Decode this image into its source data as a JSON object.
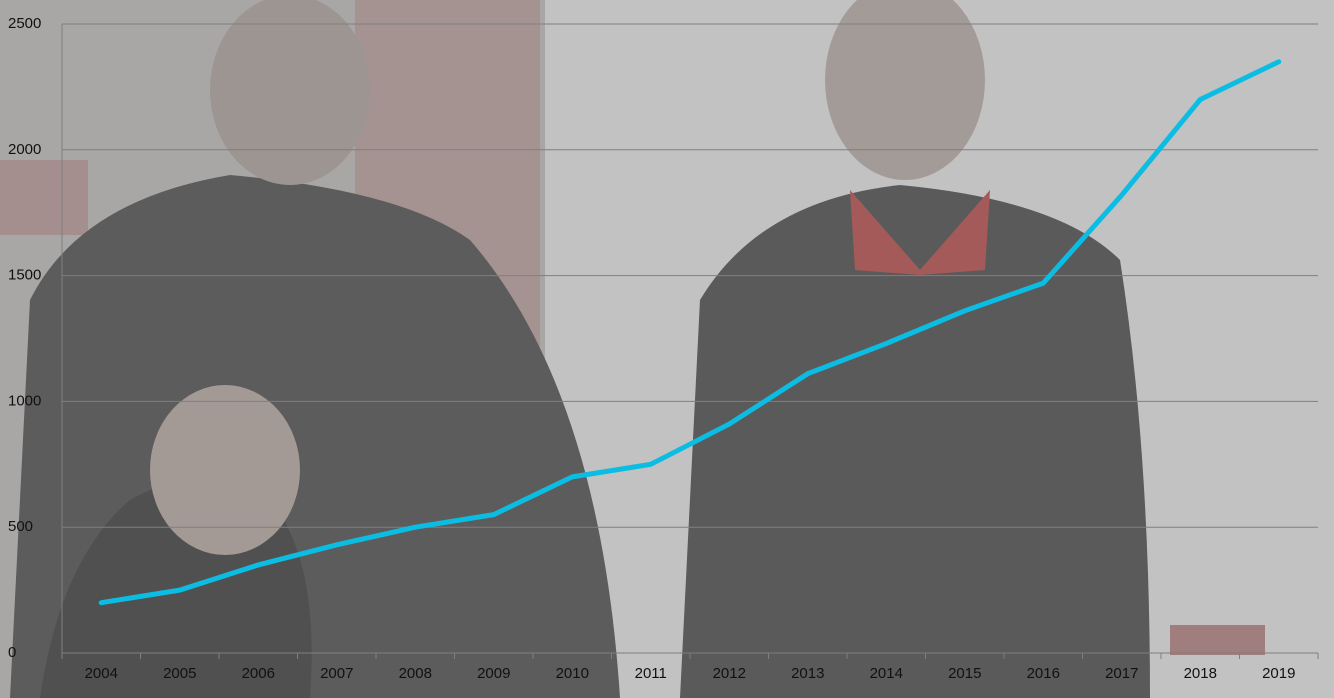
{
  "chart_data": {
    "type": "line",
    "categories": [
      "2004",
      "2005",
      "2006",
      "2007",
      "2008",
      "2009",
      "2010",
      "2011",
      "2012",
      "2013",
      "2014",
      "2015",
      "2016",
      "2017",
      "2018",
      "2019"
    ],
    "series": [
      {
        "color": "#0cbde3",
        "values": [
          200,
          250,
          350,
          430,
          500,
          550,
          700,
          750,
          910,
          1110,
          1230,
          1360,
          1470,
          1820,
          2200,
          2350
        ]
      }
    ],
    "ylim": [
      0,
      2500
    ],
    "yticks": [
      0,
      500,
      1000,
      1500,
      2000,
      2500
    ],
    "grid": true
  }
}
